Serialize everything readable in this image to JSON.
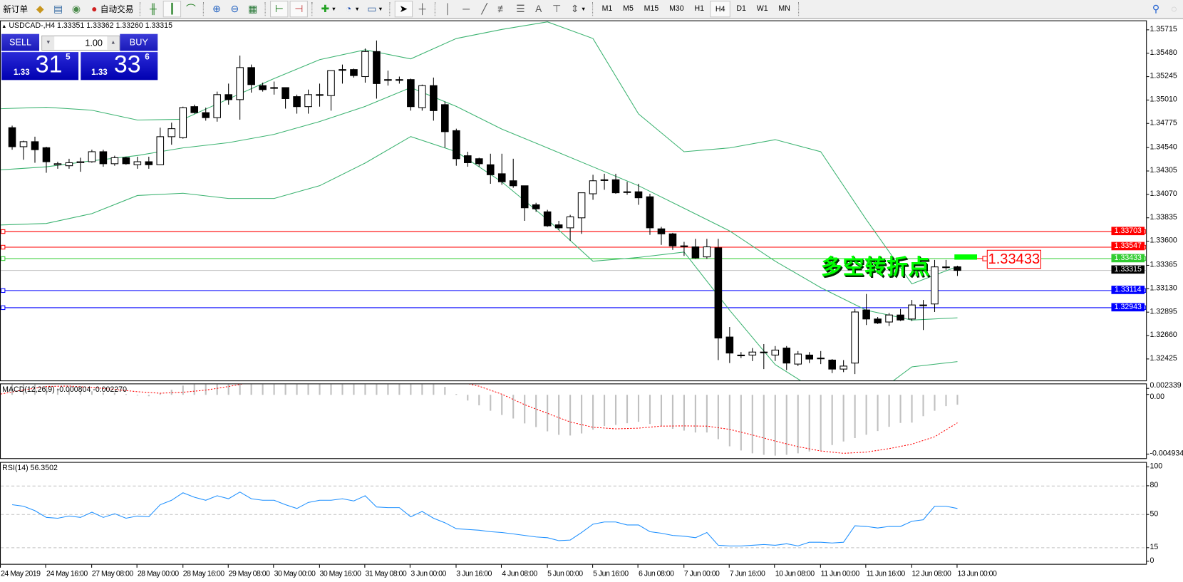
{
  "toolbar": {
    "new_order": "新订单",
    "auto_trading": "自动交易",
    "icons": [
      "gold-bars-icon",
      "market-watch-icon",
      "signal-icon",
      "autotrading-icon",
      "bar-chart-icon",
      "candlestick-icon",
      "line-chart-icon",
      "zoom-in-icon",
      "zoom-out-icon",
      "tile-windows-icon",
      "chart-shift-icon",
      "autoscroll-icon",
      "indicators-icon",
      "periods-icon",
      "templates-icon",
      "cursor-icon",
      "crosshair-icon",
      "vertical-line-icon",
      "horizontal-line-icon",
      "trendline-icon",
      "fibonacci-fan-icon",
      "fibonacci-icon",
      "text-icon",
      "text-label-icon",
      "arrows-icon"
    ],
    "text_tool": "A",
    "timeframes": [
      "M1",
      "M5",
      "M15",
      "M30",
      "H1",
      "H4",
      "D1",
      "W1",
      "MN"
    ],
    "active_timeframe": "H4"
  },
  "symbol_header": "USDCAD-,H4  1.33351 1.33362 1.33260 1.33315",
  "one_click": {
    "sell_label": "SELL",
    "buy_label": "BUY",
    "lots": "1.00",
    "sell_price": {
      "prefix": "1.33",
      "big": "31",
      "sup": "5"
    },
    "buy_price": {
      "prefix": "1.33",
      "big": "33",
      "sup": "6"
    }
  },
  "annotation": {
    "text": "多空转折点",
    "price_label": "1.33433",
    "color": "#00ff00"
  },
  "colors": {
    "bull_body": "#ffffff",
    "bear_body": "#000000",
    "bands": "#3cb371",
    "macd_hist": "#c0c0c0",
    "macd_signal": "#ff0000",
    "rsi": "#1e90ff"
  },
  "chart_data": [
    {
      "type": "candlestick",
      "title": "USDCAD-,H4",
      "ohlc_current": {
        "open": 1.33351,
        "high": 1.33362,
        "low": 1.3326,
        "close": 1.33315
      },
      "y_ticks": [
        "1.35715",
        "1.35480",
        "1.35245",
        "1.35010",
        "1.34775",
        "1.34540",
        "1.34305",
        "1.34070",
        "1.33835",
        "1.33600",
        "1.33365",
        "1.33130",
        "1.32895",
        "1.32660",
        "1.32425"
      ],
      "x_ticks": [
        "24 May 2019",
        "24 May 16:00",
        "27 May 08:00",
        "28 May 00:00",
        "28 May 16:00",
        "29 May 08:00",
        "30 May 00:00",
        "30 May 16:00",
        "31 May 08:00",
        "3 Jun 00:00",
        "3 Jun 16:00",
        "4 Jun 08:00",
        "5 Jun 00:00",
        "5 Jun 16:00",
        "6 Jun 08:00",
        "7 Jun 00:00",
        "7 Jun 16:00",
        "10 Jun 08:00",
        "11 Jun 00:00",
        "11 Jun 16:00",
        "12 Jun 08:00",
        "13 Jun 00:00"
      ],
      "candles_fields": [
        "time",
        "open",
        "high",
        "low",
        "close"
      ],
      "candles": [
        [
          "2019.05.24 04:00",
          1.3474,
          1.3476,
          1.3452,
          1.3455
        ],
        [
          "2019.05.24 08:00",
          1.3455,
          1.3461,
          1.3442,
          1.346
        ],
        [
          "2019.05.24 12:00",
          1.346,
          1.3465,
          1.3439,
          1.3452
        ],
        [
          "2019.05.24 16:00",
          1.3454,
          1.3455,
          1.3429,
          1.344
        ],
        [
          "2019.05.24 20:00",
          1.3437,
          1.344,
          1.3433,
          1.3438
        ],
        [
          "2019.05.27 00:00",
          1.3436,
          1.3443,
          1.3433,
          1.3439
        ],
        [
          "2019.05.27 04:00",
          1.3439,
          1.3444,
          1.343,
          1.344
        ],
        [
          "2019.05.27 08:00",
          1.344,
          1.3452,
          1.3439,
          1.345
        ],
        [
          "2019.05.27 12:00",
          1.345,
          1.3452,
          1.3435,
          1.3438
        ],
        [
          "2019.05.27 16:00",
          1.3438,
          1.3446,
          1.3436,
          1.3444
        ],
        [
          "2019.05.27 20:00",
          1.3444,
          1.3445,
          1.3437,
          1.3438
        ],
        [
          "2019.05.28 00:00",
          1.3437,
          1.3445,
          1.3433,
          1.344
        ],
        [
          "2019.05.28 04:00",
          1.344,
          1.3445,
          1.3433,
          1.3437
        ],
        [
          "2019.05.28 08:00",
          1.3437,
          1.3474,
          1.3437,
          1.3465
        ],
        [
          "2019.05.28 12:00",
          1.3465,
          1.3479,
          1.3457,
          1.3473
        ],
        [
          "2019.05.28 16:00",
          1.3464,
          1.3495,
          1.3463,
          1.3494
        ],
        [
          "2019.05.28 20:00",
          1.3495,
          1.3497,
          1.3488,
          1.3489
        ],
        [
          "2019.05.29 00:00",
          1.3489,
          1.3494,
          1.3481,
          1.3484
        ],
        [
          "2019.05.29 04:00",
          1.3484,
          1.351,
          1.348,
          1.3507
        ],
        [
          "2019.05.29 08:00",
          1.3507,
          1.3518,
          1.3497,
          1.3502
        ],
        [
          "2019.05.29 12:00",
          1.3502,
          1.3546,
          1.3482,
          1.3534
        ],
        [
          "2019.05.29 16:00",
          1.3534,
          1.3537,
          1.3509,
          1.3517
        ],
        [
          "2019.05.29 20:00",
          1.3516,
          1.3519,
          1.351,
          1.3512
        ],
        [
          "2019.05.30 00:00",
          1.3514,
          1.352,
          1.3507,
          1.3514
        ],
        [
          "2019.05.30 04:00",
          1.3514,
          1.3514,
          1.3493,
          1.3503
        ],
        [
          "2019.05.30 08:00",
          1.3505,
          1.3507,
          1.3488,
          1.3495
        ],
        [
          "2019.05.30 12:00",
          1.3495,
          1.3512,
          1.3488,
          1.3507
        ],
        [
          "2019.05.30 16:00",
          1.3507,
          1.3518,
          1.3495,
          1.3507
        ],
        [
          "2019.05.30 20:00",
          1.3506,
          1.3531,
          1.3491,
          1.3531
        ],
        [
          "2019.05.31 00:00",
          1.3532,
          1.3537,
          1.3518,
          1.3532
        ],
        [
          "2019.05.31 04:00",
          1.3532,
          1.3533,
          1.3524,
          1.3526
        ],
        [
          "2019.05.31 08:00",
          1.3525,
          1.3553,
          1.3519,
          1.355
        ],
        [
          "2019.05.31 12:00",
          1.355,
          1.3561,
          1.3503,
          1.3518
        ],
        [
          "2019.05.31 16:00",
          1.3522,
          1.3531,
          1.3516,
          1.3522
        ],
        [
          "2019.05.31 20:00",
          1.3522,
          1.3525,
          1.3518,
          1.3522
        ],
        [
          "2019.06.03 00:00",
          1.3522,
          1.3523,
          1.3491,
          1.3495
        ],
        [
          "2019.06.03 04:00",
          1.3494,
          1.3517,
          1.3491,
          1.3516
        ],
        [
          "2019.06.03 08:00",
          1.3516,
          1.3524,
          1.3481,
          1.3491
        ],
        [
          "2019.06.03 12:00",
          1.3497,
          1.35,
          1.3454,
          1.347
        ],
        [
          "2019.06.03 16:00",
          1.3471,
          1.3473,
          1.3436,
          1.3443
        ],
        [
          "2019.06.03 20:00",
          1.3446,
          1.345,
          1.3435,
          1.3439
        ],
        [
          "2019.06.04 00:00",
          1.3443,
          1.3444,
          1.3435,
          1.3438
        ],
        [
          "2019.06.04 04:00",
          1.3437,
          1.3448,
          1.3418,
          1.3427
        ],
        [
          "2019.06.04 08:00",
          1.3428,
          1.3448,
          1.3417,
          1.342
        ],
        [
          "2019.06.04 12:00",
          1.3421,
          1.3443,
          1.3414,
          1.3416
        ],
        [
          "2019.06.04 16:00",
          1.3416,
          1.3416,
          1.3381,
          1.3394
        ],
        [
          "2019.06.04 20:00",
          1.3397,
          1.3399,
          1.339,
          1.3393
        ],
        [
          "2019.06.05 00:00",
          1.339,
          1.3392,
          1.3375,
          1.3376
        ],
        [
          "2019.06.05 04:00",
          1.3377,
          1.3381,
          1.3372,
          1.3374
        ],
        [
          "2019.06.05 08:00",
          1.3374,
          1.3387,
          1.3361,
          1.3385
        ],
        [
          "2019.06.05 12:00",
          1.3384,
          1.3409,
          1.3368,
          1.3409
        ],
        [
          "2019.06.05 16:00",
          1.3408,
          1.3427,
          1.3402,
          1.3421
        ],
        [
          "2019.06.05 20:00",
          1.3422,
          1.3428,
          1.3412,
          1.3422
        ],
        [
          "2019.06.06 00:00",
          1.3422,
          1.3428,
          1.3408,
          1.3409
        ],
        [
          "2019.06.06 04:00",
          1.341,
          1.342,
          1.3407,
          1.341
        ],
        [
          "2019.06.06 08:00",
          1.341,
          1.3418,
          1.3397,
          1.3404
        ],
        [
          "2019.06.06 12:00",
          1.3405,
          1.3408,
          1.3367,
          1.3374
        ],
        [
          "2019.06.06 16:00",
          1.3373,
          1.3375,
          1.3357,
          1.3368
        ],
        [
          "2019.06.06 20:00",
          1.3368,
          1.3369,
          1.3352,
          1.3356
        ],
        [
          "2019.06.07 00:00",
          1.3356,
          1.336,
          1.3346,
          1.3356
        ],
        [
          "2019.06.07 04:00",
          1.3355,
          1.3363,
          1.3343,
          1.3344
        ],
        [
          "2019.06.07 08:00",
          1.3345,
          1.3363,
          1.3343,
          1.3355
        ],
        [
          "2019.06.07 12:00",
          1.3354,
          1.3363,
          1.3242,
          1.3264
        ],
        [
          "2019.06.07 16:00",
          1.3265,
          1.3275,
          1.3239,
          1.3249
        ],
        [
          "2019.06.07 20:00",
          1.3247,
          1.325,
          1.3244,
          1.3247
        ],
        [
          "2019.06.10 00:00",
          1.3247,
          1.3254,
          1.3241,
          1.325
        ],
        [
          "2019.06.10 04:00",
          1.325,
          1.3258,
          1.3233,
          1.325
        ],
        [
          "2019.06.10 08:00",
          1.3247,
          1.3256,
          1.3241,
          1.3252
        ],
        [
          "2019.06.10 12:00",
          1.3254,
          1.3256,
          1.3232,
          1.3239
        ],
        [
          "2019.06.10 16:00",
          1.3238,
          1.3251,
          1.3236,
          1.3248
        ],
        [
          "2019.06.10 20:00",
          1.3247,
          1.325,
          1.3239,
          1.3243
        ],
        [
          "2019.06.11 00:00",
          1.3244,
          1.3251,
          1.3238,
          1.3244
        ],
        [
          "2019.06.11 04:00",
          1.3242,
          1.3243,
          1.3229,
          1.3233
        ],
        [
          "2019.06.11 08:00",
          1.3233,
          1.3242,
          1.323,
          1.3236
        ],
        [
          "2019.06.11 12:00",
          1.3239,
          1.3293,
          1.3228,
          1.329
        ],
        [
          "2019.06.11 16:00",
          1.3292,
          1.3308,
          1.3277,
          1.3283
        ],
        [
          "2019.06.11 20:00",
          1.3283,
          1.3285,
          1.3278,
          1.3279
        ],
        [
          "2019.06.12 00:00",
          1.328,
          1.3289,
          1.3276,
          1.3287
        ],
        [
          "2019.06.12 04:00",
          1.3287,
          1.3293,
          1.3281,
          1.3282
        ],
        [
          "2019.06.12 08:00",
          1.3283,
          1.3302,
          1.3281,
          1.3297
        ],
        [
          "2019.06.12 12:00",
          1.3297,
          1.3302,
          1.3272,
          1.3297
        ],
        [
          "2019.06.12 16:00",
          1.3298,
          1.3342,
          1.329,
          1.3335
        ],
        [
          "2019.06.12 20:00",
          1.3335,
          1.3342,
          1.3332,
          1.3335
        ],
        [
          "2019.06.13 00:00",
          1.33351,
          1.33362,
          1.3326,
          1.33315
        ]
      ],
      "bollinger_every_4_bars": {
        "upper": [
          1.34929,
          1.34944,
          1.34914,
          1.34816,
          1.34824,
          1.35027,
          1.35231,
          1.35419,
          1.35517,
          1.35427,
          1.3563,
          1.35721,
          1.35796,
          1.3563,
          1.34877,
          1.345,
          1.34538,
          1.3462,
          1.345,
          1.33822,
          1.33181,
          1.33354
        ],
        "middle": [
          1.34319,
          1.34349,
          1.34409,
          1.34462,
          1.34538,
          1.3459,
          1.34673,
          1.34801,
          1.34952,
          1.3514,
          1.34952,
          1.34726,
          1.34538,
          1.34349,
          1.34161,
          1.33935,
          1.33709,
          1.33407,
          1.33143,
          1.32917,
          1.32819,
          1.32842
        ],
        "lower": [
          1.33769,
          1.33784,
          1.33882,
          1.34063,
          1.34085,
          1.34033,
          1.34033,
          1.34161,
          1.34387,
          1.34651,
          1.345,
          1.34198,
          1.33822,
          1.33407,
          1.33445,
          1.33498,
          1.32917,
          1.32375,
          1.32088,
          1.32013,
          1.32352,
          1.32405
        ]
      },
      "horizontal_lines": [
        {
          "price": "1.33703",
          "color": "#ff0000"
        },
        {
          "price": "1.33547",
          "color": "#ff0000"
        },
        {
          "price": "1.33433",
          "color": "#32cd32"
        },
        {
          "price": "1.33315",
          "color": "#c0c0c0",
          "tag_color": "#000000"
        },
        {
          "price": "1.33114",
          "color": "#0000ff"
        },
        {
          "price": "1.32943",
          "color": "#0000ff"
        }
      ]
    },
    {
      "type": "bar",
      "title": "MACD(12,26,9) -0.000804 -0.002270",
      "y_ticks": [
        "0.002339",
        "0.00",
        "-0.004934"
      ],
      "histogram": [
        0.00095,
        0.00095,
        0.00087,
        0.00066,
        0.00052,
        0.00042,
        0.00029,
        0.00029,
        0.00017,
        0.00017,
        6e-05,
        -6e-05,
        -0.00012,
        0.00012,
        0.00041,
        0.00075,
        0.00098,
        0.0011,
        0.0012,
        0.0013,
        0.0014,
        0.0015,
        0.0016,
        0.0017,
        0.0017,
        0.0018,
        0.0018,
        0.0018,
        0.0018,
        0.0018,
        0.0017,
        0.0017,
        0.0016,
        0.0015,
        0.0014,
        0.0013,
        0.0012,
        0.0011,
        0.00064,
        6e-05,
        -0.00046,
        -0.00085,
        -0.00129,
        -0.00163,
        -0.00192,
        -0.00232,
        -0.00261,
        -0.00296,
        -0.00324,
        -0.0033,
        -0.00313,
        -0.00282,
        -0.00253,
        -0.00244,
        -0.0023,
        -0.00219,
        -0.00236,
        -0.00253,
        -0.00276,
        -0.0029,
        -0.00305,
        -0.00305,
        -0.00359,
        -0.00417,
        -0.00451,
        -0.00474,
        -0.00486,
        -0.00493,
        -0.00486,
        -0.00474,
        -0.00459,
        -0.00451,
        -0.00407,
        -0.00378,
        -0.00351,
        -0.00323,
        -0.00294,
        -0.00259,
        -0.00228,
        -0.00225,
        -0.00173,
        -0.00129,
        -0.00092,
        -0.000804
      ],
      "signal_every_2_bars": [
        6e-05,
        0.0004,
        0.00067,
        0.00071,
        0.0006,
        0.00044,
        0.00025,
        0.00013,
        0.00021,
        0.00038,
        0.00067,
        0.001,
        0.0012,
        0.0014,
        0.0015,
        0.0016,
        0.0016,
        0.0016,
        0.0015,
        0.0013,
        0.0011,
        0.0007,
        5e-05,
        -0.0008,
        -0.0015,
        -0.0022,
        -0.00263,
        -0.00276,
        -0.0027,
        -0.00254,
        -0.00252,
        -0.00254,
        -0.0028,
        -0.00325,
        -0.00375,
        -0.0042,
        -0.00455,
        -0.00474,
        -0.00464,
        -0.00436,
        -0.004,
        -0.0034,
        -0.00227
      ]
    },
    {
      "type": "line",
      "title": "RSI(14) 56.3502",
      "y_ticks": [
        "100",
        "80",
        "50",
        "15",
        "0"
      ],
      "levels": [
        80,
        50,
        15
      ],
      "values": [
        60.3,
        58.7,
        54.0,
        46.9,
        46.1,
        48.4,
        46.9,
        52.4,
        46.9,
        50.8,
        46.1,
        48.4,
        47.6,
        60.3,
        65.0,
        72.9,
        68.2,
        65.0,
        69.8,
        66.6,
        73.7,
        66.6,
        65.0,
        65.0,
        60.3,
        56.3,
        62.7,
        65.0,
        65.0,
        66.6,
        64.3,
        69.8,
        57.9,
        57.2,
        57.2,
        47.6,
        53.2,
        46.1,
        41.3,
        35.0,
        34.2,
        33.4,
        31.9,
        31.0,
        29.5,
        27.9,
        26.3,
        25.5,
        22.4,
        23.1,
        31.0,
        39.8,
        42.1,
        42.1,
        39.0,
        39.0,
        31.9,
        30.3,
        27.9,
        27.1,
        25.5,
        31.0,
        17.6,
        16.9,
        16.9,
        17.6,
        18.4,
        17.6,
        19.2,
        16.9,
        20.8,
        20.8,
        20.0,
        20.8,
        38.1,
        37.4,
        35.8,
        37.4,
        37.4,
        42.9,
        44.5,
        58.7,
        58.7,
        56.35
      ]
    }
  ]
}
